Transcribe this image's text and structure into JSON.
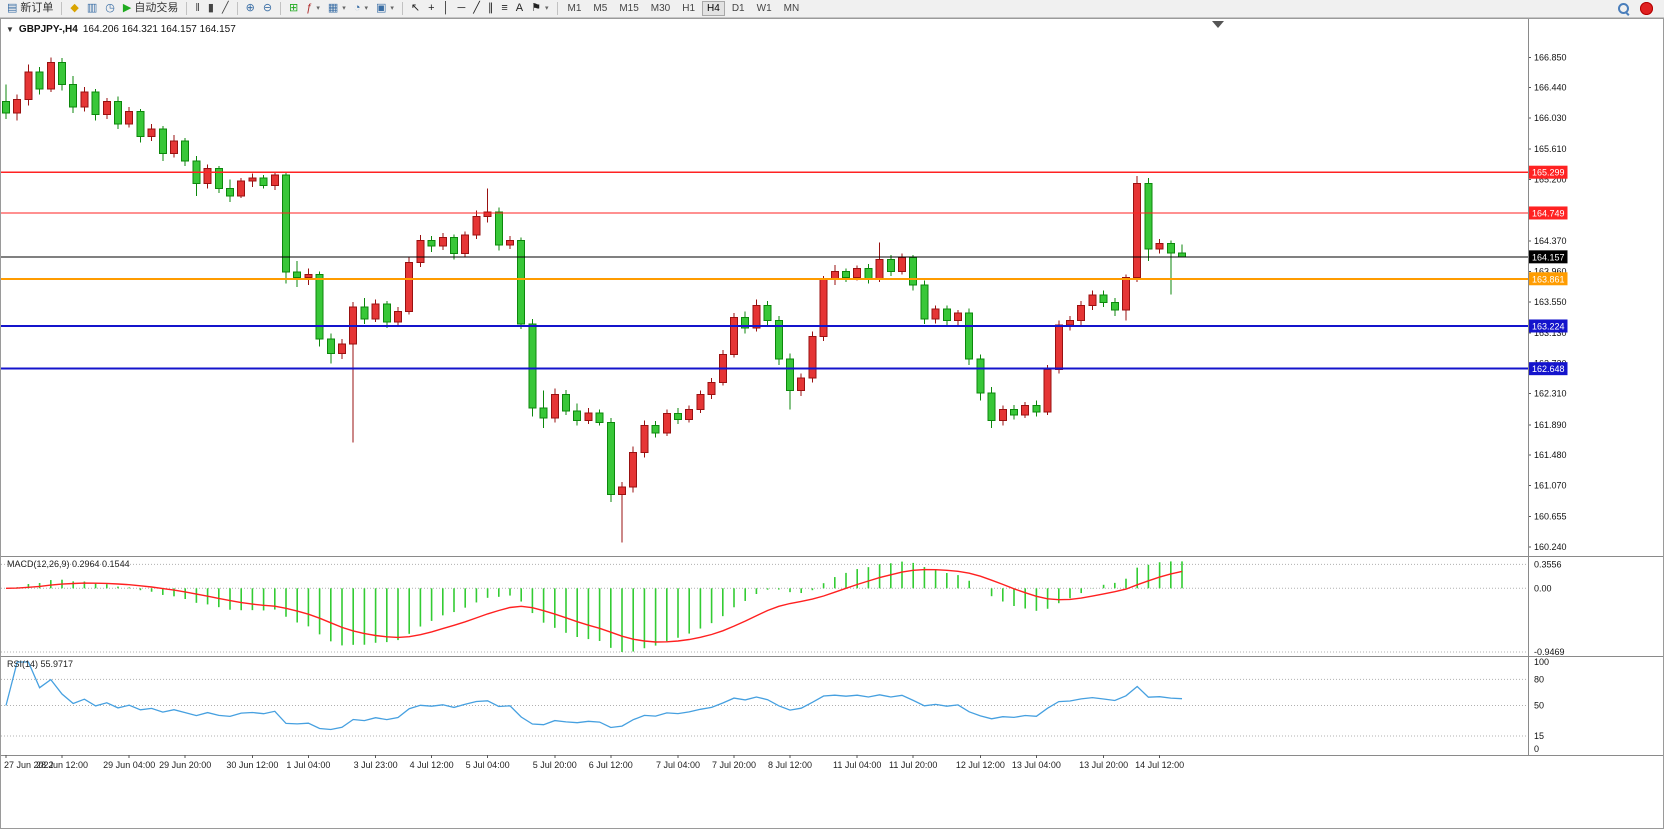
{
  "toolbar": {
    "items": [
      {
        "type": "button",
        "name": "new-order-button",
        "glyph": "▤",
        "glyph_color": "#3a6ea5",
        "label": "新订单"
      },
      {
        "type": "sep"
      },
      {
        "type": "button",
        "name": "market-watch-icon",
        "glyph": "◆",
        "glyph_color": "#d9a400"
      },
      {
        "type": "button",
        "name": "data-window-icon",
        "glyph": "▥",
        "glyph_color": "#3a6ea5"
      },
      {
        "type": "button",
        "name": "navigator-icon",
        "glyph": "◷",
        "glyph_color": "#3a6ea5"
      },
      {
        "type": "button",
        "name": "autotrading-button",
        "glyph": "▶",
        "glyph_color": "#1faa1f",
        "label": "自动交易"
      },
      {
        "type": "sep"
      },
      {
        "type": "button",
        "name": "bar-chart-icon",
        "glyph": "‖",
        "glyph_color": "#444"
      },
      {
        "type": "button",
        "name": "candlestick-chart-icon",
        "glyph": "▮",
        "glyph_color": "#444"
      },
      {
        "type": "button",
        "name": "line-chart-icon",
        "glyph": "╱",
        "glyph_color": "#444"
      },
      {
        "type": "sep"
      },
      {
        "type": "button",
        "name": "zoom-in-icon",
        "glyph": "⊕",
        "glyph_color": "#3a6ea5"
      },
      {
        "type": "button",
        "name": "zoom-out-icon",
        "glyph": "⊖",
        "glyph_color": "#3a6ea5"
      },
      {
        "type": "sep"
      },
      {
        "type": "button",
        "name": "tile-windows-icon",
        "glyph": "⊞",
        "glyph_color": "#1faa1f"
      },
      {
        "type": "button",
        "name": "indicators-icon",
        "glyph": "ƒ",
        "glyph_color": "#b03030",
        "dropdown": true
      },
      {
        "type": "button",
        "name": "profiles-icon",
        "glyph": "▦",
        "glyph_color": "#3a6ea5",
        "dropdown": true
      },
      {
        "type": "button",
        "name": "period-icon",
        "glyph": "◔",
        "glyph_color": "#3a6ea5",
        "dropdown": true
      },
      {
        "type": "button",
        "name": "snapshot-icon",
        "glyph": "▣",
        "glyph_color": "#3a6ea5",
        "dropdown": true
      },
      {
        "type": "sep"
      },
      {
        "type": "button",
        "name": "cursor-icon",
        "glyph": "↖",
        "glyph_color": "#222"
      },
      {
        "type": "button",
        "name": "crosshair-icon",
        "glyph": "+",
        "glyph_color": "#222"
      },
      {
        "type": "button",
        "name": "vertical-line-icon",
        "glyph": "│",
        "glyph_color": "#222"
      },
      {
        "type": "button",
        "name": "horizontal-line-icon",
        "glyph": "─",
        "glyph_color": "#222"
      },
      {
        "type": "button",
        "name": "trendline-icon",
        "glyph": "╱",
        "glyph_color": "#222"
      },
      {
        "type": "button",
        "name": "channel-icon",
        "glyph": "∥",
        "glyph_color": "#222"
      },
      {
        "type": "button",
        "name": "fibonacci-icon",
        "glyph": "≡",
        "glyph_color": "#222"
      },
      {
        "type": "button",
        "name": "text-icon",
        "glyph": "A",
        "glyph_color": "#222"
      },
      {
        "type": "button",
        "name": "shapes-icon",
        "glyph": "⚑",
        "glyph_color": "#222",
        "dropdown": true
      },
      {
        "type": "sep"
      }
    ],
    "timeframes": [
      "M1",
      "M5",
      "M15",
      "M30",
      "H1",
      "H4",
      "D1",
      "W1",
      "MN"
    ],
    "active_timeframe": "H4"
  },
  "chart": {
    "title_symbol": "GBPJPY-,H4",
    "title_ohlc": "164.206 164.321 164.157 164.157",
    "ylim": [
      160.12,
      167.38
    ],
    "price_axis_labels": [
      {
        "text": "166.850",
        "value": 166.85
      },
      {
        "text": "166.440",
        "value": 166.44
      },
      {
        "text": "166.030",
        "value": 166.03
      },
      {
        "text": "165.610",
        "value": 165.61
      },
      {
        "text": "165.200",
        "value": 165.2
      },
      {
        "text": "164.370",
        "value": 164.37
      },
      {
        "text": "163.960",
        "value": 163.96
      },
      {
        "text": "163.550",
        "value": 163.55
      },
      {
        "text": "163.130",
        "value": 163.13
      },
      {
        "text": "162.720",
        "value": 162.72
      },
      {
        "text": "162.310",
        "value": 162.31
      },
      {
        "text": "161.890",
        "value": 161.89
      },
      {
        "text": "161.480",
        "value": 161.48
      },
      {
        "text": "161.070",
        "value": 161.07
      },
      {
        "text": "160.655",
        "value": 160.655
      },
      {
        "text": "160.240",
        "value": 160.24
      }
    ],
    "hlines": [
      {
        "name": "resistance-line-1",
        "value": 165.299,
        "label": "165.299",
        "color": "#ff2222",
        "width": 1.4
      },
      {
        "name": "resistance-line-2",
        "value": 164.749,
        "label": "164.749",
        "color": "#ff2222",
        "width": 1.4
      },
      {
        "name": "current-price-line",
        "value": 164.157,
        "label": "164.157",
        "color": "#000000",
        "width": 1
      },
      {
        "name": "pivot-line",
        "value": 163.861,
        "label": "163.861",
        "color": "#ff9c00",
        "width": 2
      },
      {
        "name": "support-line-1",
        "value": 163.224,
        "label": "163.224",
        "color": "#1414cc",
        "width": 2
      },
      {
        "name": "support-line-2",
        "value": 162.648,
        "label": "162.648",
        "color": "#1414cc",
        "width": 2
      }
    ],
    "x_axis_labels": [
      "27 Jun 2022",
      "28 Jun 12:00",
      "29 Jun 04:00",
      "29 Jun 20:00",
      "30 Jun 12:00",
      "1 Jul 04:00",
      "3 Jul 23:00",
      "4 Jul 12:00",
      "5 Jul 04:00",
      "5 Jul 20:00",
      "6 Jul 12:00",
      "7 Jul 04:00",
      "7 Jul 20:00",
      "8 Jul 12:00",
      "11 Jul 04:00",
      "11 Jul 20:00",
      "12 Jul 12:00",
      "13 Jul 04:00",
      "13 Jul 20:00",
      "14 Jul 12:00"
    ]
  },
  "macd": {
    "label": "MACD(12,26,9) 0.2964 0.1544",
    "current": "0.2964",
    "current_signal": "0.1544",
    "axis_labels": [
      {
        "text": "0.3556",
        "value": 0.3556
      },
      {
        "text": "0.00",
        "value": 0
      },
      {
        "text": "-0.9469",
        "value": -0.9469
      }
    ]
  },
  "rsi": {
    "label": "RSI(14) 55.9717",
    "current": "55.9717",
    "levels": [
      80,
      50,
      15
    ],
    "axis_labels": [
      {
        "text": "100",
        "value": 100
      },
      {
        "text": "80",
        "value": 80
      },
      {
        "text": "50",
        "value": 50
      },
      {
        "text": "15",
        "value": 15
      },
      {
        "text": "0",
        "value": 0
      }
    ]
  },
  "chart_data": {
    "type": "candlestick",
    "symbol": "GBPJPY-",
    "timeframe": "H4",
    "title": "GBPJPY-,H4",
    "ylim": [
      160.12,
      167.38
    ],
    "indicators": [
      {
        "type": "MACD",
        "params": [
          12,
          26,
          9
        ],
        "current": [
          0.2964,
          0.1544
        ],
        "ylim": [
          -0.9469,
          0.3556
        ]
      },
      {
        "type": "RSI",
        "params": [
          14
        ],
        "current": 55.9717,
        "levels": [
          15,
          50,
          80
        ],
        "ylim": [
          0,
          100
        ]
      }
    ],
    "ohlc": [
      [
        166.25,
        166.48,
        166.02,
        166.1
      ],
      [
        166.1,
        166.35,
        166.0,
        166.28
      ],
      [
        166.28,
        166.75,
        166.2,
        166.65
      ],
      [
        166.65,
        166.72,
        166.35,
        166.42
      ],
      [
        166.42,
        166.85,
        166.38,
        166.78
      ],
      [
        166.78,
        166.84,
        166.4,
        166.48
      ],
      [
        166.48,
        166.6,
        166.1,
        166.18
      ],
      [
        166.18,
        166.45,
        166.12,
        166.38
      ],
      [
        166.38,
        166.42,
        166.0,
        166.08
      ],
      [
        166.08,
        166.3,
        166.02,
        166.25
      ],
      [
        166.25,
        166.32,
        165.88,
        165.95
      ],
      [
        165.95,
        166.18,
        165.9,
        166.12
      ],
      [
        166.12,
        166.15,
        165.7,
        165.78
      ],
      [
        165.78,
        165.95,
        165.72,
        165.88
      ],
      [
        165.88,
        165.92,
        165.45,
        165.55
      ],
      [
        165.55,
        165.8,
        165.5,
        165.72
      ],
      [
        165.72,
        165.76,
        165.38,
        165.45
      ],
      [
        165.45,
        165.52,
        164.98,
        165.15
      ],
      [
        165.15,
        165.4,
        165.08,
        165.35
      ],
      [
        165.35,
        165.38,
        165.02,
        165.08
      ],
      [
        165.08,
        165.2,
        164.9,
        164.98
      ],
      [
        164.98,
        165.22,
        164.95,
        165.18
      ],
      [
        165.18,
        165.28,
        165.1,
        165.22
      ],
      [
        165.22,
        165.26,
        165.08,
        165.12
      ],
      [
        165.12,
        165.3,
        165.06,
        165.26
      ],
      [
        165.26,
        165.3,
        163.8,
        163.95
      ],
      [
        163.95,
        164.1,
        163.75,
        163.88
      ],
      [
        163.88,
        164.0,
        163.78,
        163.92
      ],
      [
        163.92,
        163.96,
        162.95,
        163.05
      ],
      [
        163.05,
        163.12,
        162.72,
        162.85
      ],
      [
        162.85,
        163.05,
        162.78,
        162.98
      ],
      [
        162.98,
        163.55,
        161.65,
        163.48
      ],
      [
        163.48,
        163.6,
        163.25,
        163.32
      ],
      [
        163.32,
        163.58,
        163.28,
        163.52
      ],
      [
        163.52,
        163.56,
        163.2,
        163.28
      ],
      [
        163.28,
        163.48,
        163.22,
        163.42
      ],
      [
        163.42,
        164.15,
        163.38,
        164.08
      ],
      [
        164.08,
        164.45,
        164.02,
        164.38
      ],
      [
        164.38,
        164.44,
        164.22,
        164.3
      ],
      [
        164.3,
        164.48,
        164.25,
        164.42
      ],
      [
        164.42,
        164.46,
        164.12,
        164.2
      ],
      [
        164.2,
        164.5,
        164.15,
        164.45
      ],
      [
        164.45,
        164.78,
        164.4,
        164.7
      ],
      [
        164.7,
        165.08,
        164.62,
        164.76
      ],
      [
        164.76,
        164.82,
        164.24,
        164.32
      ],
      [
        164.32,
        164.44,
        164.26,
        164.38
      ],
      [
        164.38,
        164.42,
        163.18,
        163.25
      ],
      [
        163.25,
        163.32,
        162.0,
        162.12
      ],
      [
        162.12,
        162.35,
        161.85,
        161.98
      ],
      [
        161.98,
        162.38,
        161.92,
        162.3
      ],
      [
        162.3,
        162.36,
        162.02,
        162.08
      ],
      [
        162.08,
        162.18,
        161.88,
        161.95
      ],
      [
        161.95,
        162.12,
        161.9,
        162.05
      ],
      [
        162.05,
        162.1,
        161.88,
        161.92
      ],
      [
        161.92,
        161.98,
        160.85,
        160.95
      ],
      [
        160.95,
        161.12,
        160.3,
        161.05
      ],
      [
        161.05,
        161.6,
        160.98,
        161.52
      ],
      [
        161.52,
        161.95,
        161.45,
        161.88
      ],
      [
        161.88,
        161.94,
        161.72,
        161.78
      ],
      [
        161.78,
        162.1,
        161.74,
        162.04
      ],
      [
        162.04,
        162.12,
        161.9,
        161.96
      ],
      [
        161.96,
        162.15,
        161.92,
        162.1
      ],
      [
        162.1,
        162.35,
        162.05,
        162.3
      ],
      [
        162.3,
        162.52,
        162.24,
        162.46
      ],
      [
        162.46,
        162.9,
        162.42,
        162.84
      ],
      [
        162.84,
        163.4,
        162.8,
        163.34
      ],
      [
        163.34,
        163.42,
        163.12,
        163.2
      ],
      [
        163.2,
        163.58,
        163.15,
        163.5
      ],
      [
        163.5,
        163.56,
        163.24,
        163.3
      ],
      [
        163.3,
        163.36,
        162.7,
        162.78
      ],
      [
        162.78,
        162.85,
        162.1,
        162.35
      ],
      [
        162.35,
        162.58,
        162.28,
        162.52
      ],
      [
        162.52,
        163.15,
        162.46,
        163.08
      ],
      [
        163.08,
        163.9,
        163.02,
        163.85
      ],
      [
        163.85,
        164.05,
        163.78,
        163.96
      ],
      [
        163.96,
        164.0,
        163.82,
        163.88
      ],
      [
        163.88,
        164.04,
        163.84,
        164.0
      ],
      [
        164.0,
        164.06,
        163.8,
        163.86
      ],
      [
        163.86,
        164.35,
        163.82,
        164.12
      ],
      [
        164.12,
        164.18,
        163.9,
        163.96
      ],
      [
        163.96,
        164.2,
        163.92,
        164.15
      ],
      [
        164.15,
        164.18,
        163.7,
        163.78
      ],
      [
        163.78,
        163.84,
        163.25,
        163.32
      ],
      [
        163.32,
        163.5,
        163.26,
        163.45
      ],
      [
        163.45,
        163.5,
        163.24,
        163.3
      ],
      [
        163.3,
        163.44,
        163.24,
        163.4
      ],
      [
        163.4,
        163.46,
        162.7,
        162.78
      ],
      [
        162.78,
        162.84,
        162.22,
        162.32
      ],
      [
        162.32,
        162.4,
        161.85,
        161.95
      ],
      [
        161.95,
        162.15,
        161.88,
        162.1
      ],
      [
        162.1,
        162.16,
        161.96,
        162.02
      ],
      [
        162.02,
        162.2,
        161.98,
        162.15
      ],
      [
        162.15,
        162.22,
        162.0,
        162.06
      ],
      [
        162.06,
        162.7,
        162.02,
        162.64
      ],
      [
        162.64,
        163.3,
        162.58,
        163.24
      ],
      [
        163.24,
        163.36,
        163.16,
        163.3
      ],
      [
        163.3,
        163.56,
        163.24,
        163.5
      ],
      [
        163.5,
        163.7,
        163.44,
        163.64
      ],
      [
        163.64,
        163.7,
        163.48,
        163.54
      ],
      [
        163.54,
        163.6,
        163.36,
        163.44
      ],
      [
        163.44,
        163.92,
        163.3,
        163.88
      ],
      [
        163.88,
        165.25,
        163.82,
        165.15
      ],
      [
        165.15,
        165.22,
        164.1,
        164.26
      ],
      [
        164.26,
        164.4,
        164.2,
        164.34
      ],
      [
        164.34,
        164.38,
        163.65,
        164.21
      ],
      [
        164.206,
        164.321,
        164.157,
        164.157
      ]
    ]
  },
  "colors": {
    "bull": "#e53535",
    "bull_border": "#991111",
    "bear": "#38c738",
    "bear_border": "#0c870c",
    "macd_hist": "#33cc33",
    "macd_signal": "#ff2020",
    "rsi_line": "#46a0e0",
    "level_dotted": "#b0b0b0",
    "axis_text": "#111111",
    "panel_border": "#8a8a8a"
  }
}
